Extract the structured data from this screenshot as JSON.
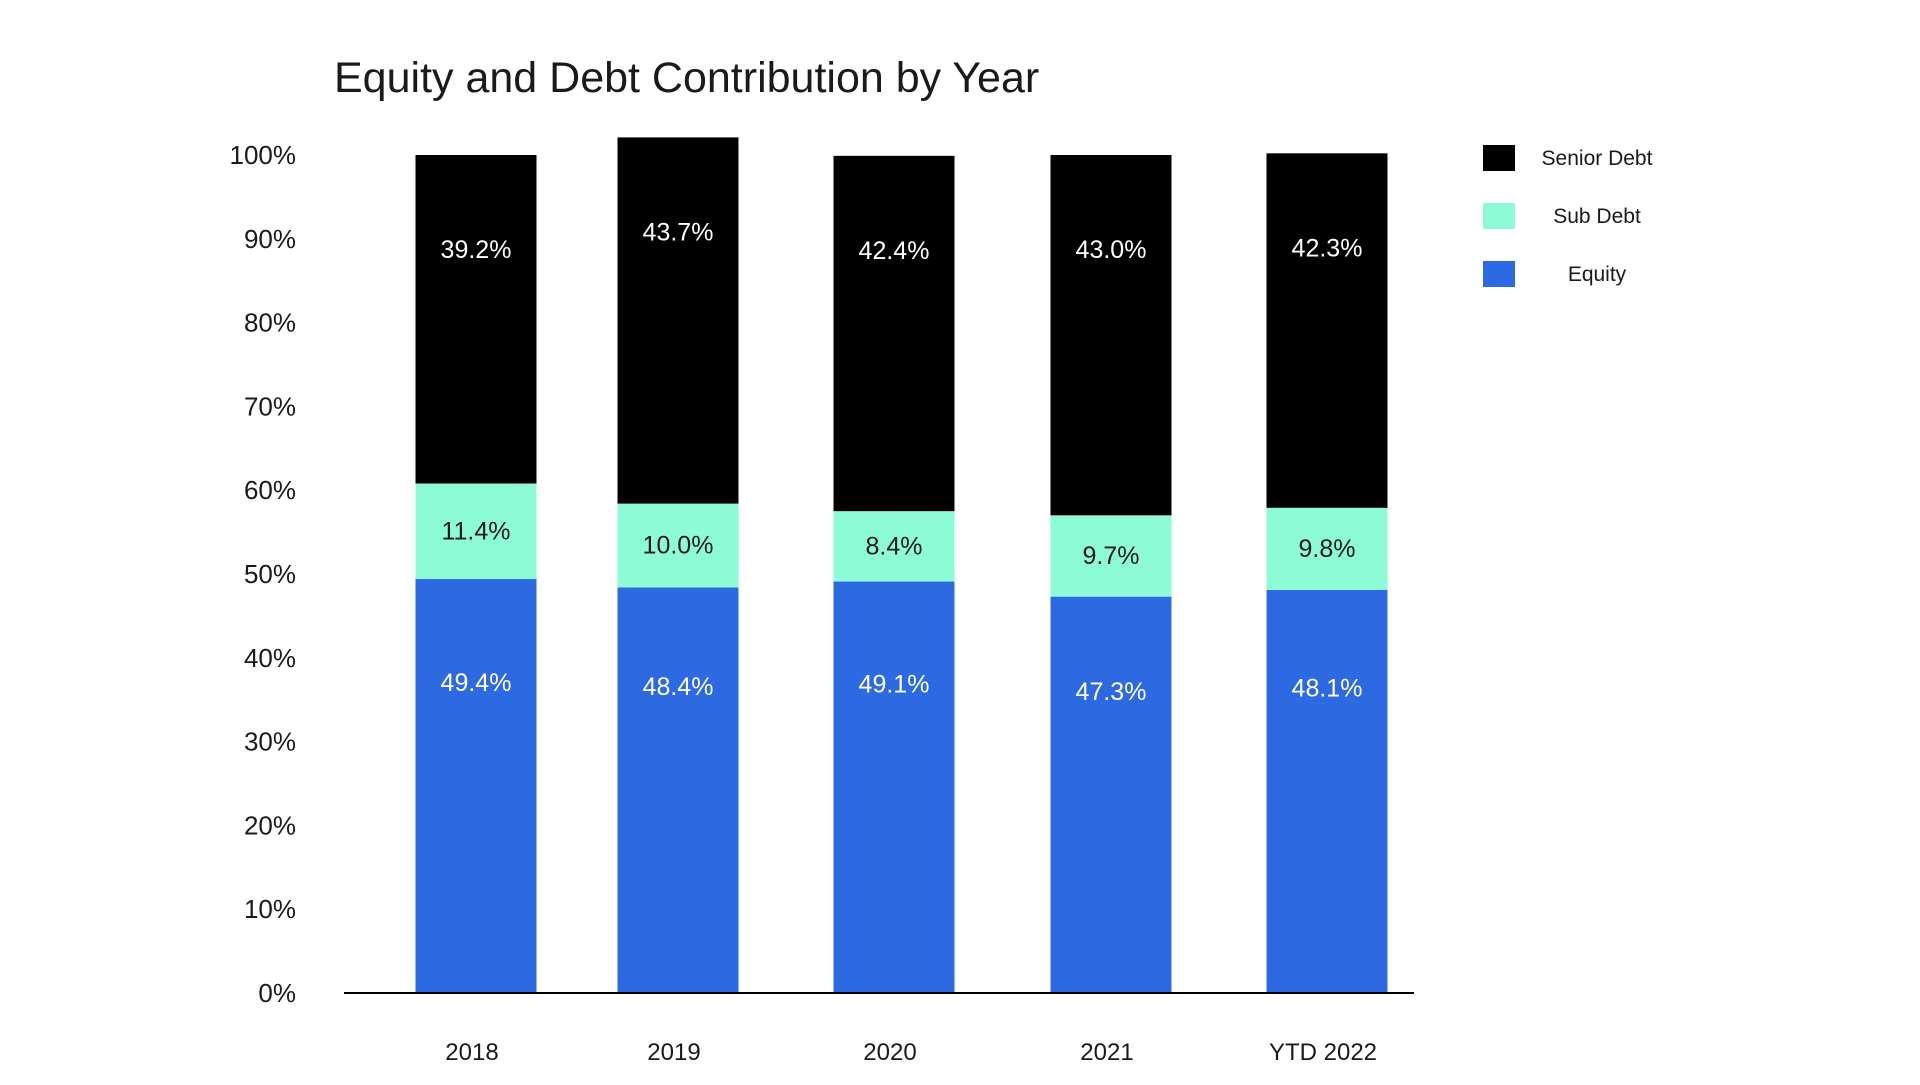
{
  "chart_data": {
    "type": "bar",
    "stacked": true,
    "title": "Equity and Debt Contribution by Year",
    "xlabel": "",
    "ylabel": "",
    "ylim": [
      0,
      100
    ],
    "y_ticks": [
      "0%",
      "10%",
      "20%",
      "30%",
      "40%",
      "50%",
      "60%",
      "70%",
      "80%",
      "90%",
      "100%"
    ],
    "grid": false,
    "legend_position": "right",
    "categories": [
      "2018",
      "2019",
      "2020",
      "2021",
      "YTD 2022"
    ],
    "series": [
      {
        "name": "Equity",
        "color": "#2d69e0",
        "label_color": "#ffffff",
        "values": [
          49.4,
          48.4,
          49.1,
          47.3,
          48.1
        ],
        "labels": [
          "49.4%",
          "48.4%",
          "49.1%",
          "47.3%",
          "48.1%"
        ]
      },
      {
        "name": "Sub Debt",
        "color": "#8dfcd6",
        "label_color": "#1a1a1a",
        "values": [
          11.4,
          10.0,
          8.4,
          9.7,
          9.8
        ],
        "labels": [
          "11.4%",
          "10.0%",
          "8.4%",
          "9.7%",
          "9.8%"
        ]
      },
      {
        "name": "Senior Debt",
        "color": "#000000",
        "label_color": "#ffffff",
        "values": [
          39.2,
          43.7,
          42.4,
          43.0,
          42.3
        ],
        "labels": [
          "39.2%",
          "43.7%",
          "42.4%",
          "43.0%",
          "42.3%"
        ]
      }
    ],
    "legend_order": [
      "Senior Debt",
      "Sub Debt",
      "Equity"
    ]
  }
}
